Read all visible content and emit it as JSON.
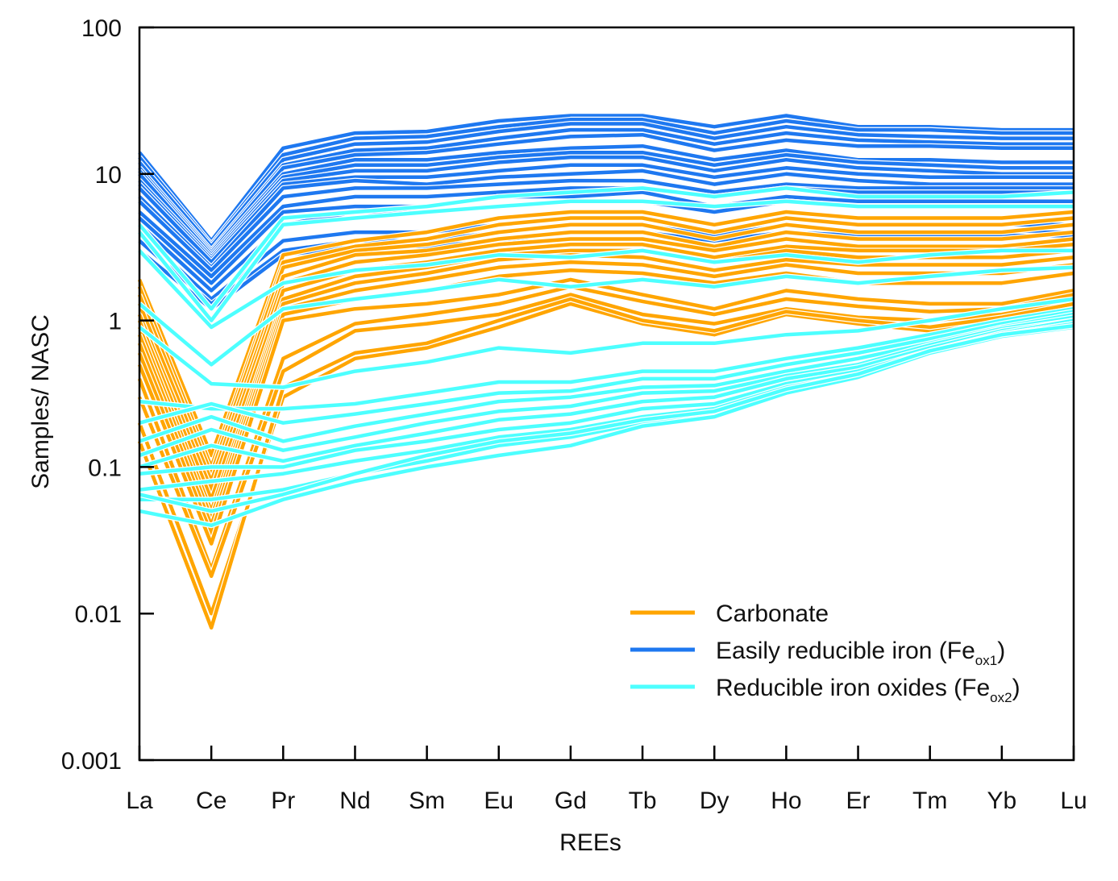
{
  "chart_data": {
    "type": "line",
    "xlabel": "REEs",
    "ylabel": "Samples/ NASC",
    "yscale": "log",
    "ylim": [
      0.001,
      100
    ],
    "yticks": [
      100,
      10,
      1,
      0.1,
      0.01,
      0.001
    ],
    "ytick_labels": [
      "100",
      "10",
      "1",
      "0.1",
      "0.01",
      "0.001"
    ],
    "categories": [
      "La",
      "Ce",
      "Pr",
      "Nd",
      "Sm",
      "Eu",
      "Gd",
      "Tb",
      "Dy",
      "Ho",
      "Er",
      "Tm",
      "Yb",
      "Lu"
    ],
    "grid": false,
    "legend_position": "bottom-right",
    "legend": [
      {
        "group": "carbonate",
        "label": "Carbonate",
        "sub": "",
        "suffix": "",
        "color": "#FFA500"
      },
      {
        "group": "feox1",
        "label": "Easily reducible iron (Fe",
        "sub": "ox1",
        "suffix": ")",
        "color": "#1E78F0"
      },
      {
        "group": "feox2",
        "label": "Reducible iron oxides (Fe",
        "sub": "ox2",
        "suffix": ")",
        "color": "#4DFFFF"
      }
    ],
    "series": [
      {
        "group": "feox1",
        "values": [
          14,
          3.5,
          15,
          19,
          19.5,
          23,
          25,
          25,
          21,
          25,
          21,
          21,
          20,
          20
        ]
      },
      {
        "group": "feox1",
        "values": [
          13,
          3.3,
          13.5,
          17.5,
          18,
          21,
          23.5,
          23.5,
          19,
          23,
          20,
          20,
          19,
          19
        ]
      },
      {
        "group": "feox1",
        "values": [
          12,
          3.2,
          12.5,
          16,
          16.5,
          19.5,
          22,
          22,
          17.5,
          21,
          18.5,
          18,
          17.5,
          17.5
        ]
      },
      {
        "group": "feox1",
        "values": [
          11,
          3.0,
          11.5,
          14.5,
          15,
          17.5,
          20,
          20,
          16,
          19,
          17,
          16.5,
          16,
          16
        ]
      },
      {
        "group": "feox1",
        "values": [
          10.5,
          2.9,
          11,
          13.5,
          14,
          16,
          18,
          18.5,
          14.5,
          17,
          15.5,
          15.5,
          15,
          15
        ]
      },
      {
        "group": "feox1",
        "values": [
          10,
          2.8,
          10,
          12.5,
          12.5,
          14,
          15,
          15.5,
          12.5,
          14.5,
          12.5,
          12.5,
          12,
          12
        ]
      },
      {
        "group": "feox1",
        "values": [
          9,
          2.7,
          9.5,
          11.5,
          11.5,
          13,
          14,
          14,
          11.5,
          13.5,
          12,
          11.5,
          11,
          11
        ]
      },
      {
        "group": "feox1",
        "values": [
          8.5,
          2.6,
          9,
          10.5,
          10.5,
          12,
          13,
          13,
          10.5,
          12.5,
          11,
          10.5,
          10,
          10
        ]
      },
      {
        "group": "feox1",
        "values": [
          8,
          2.5,
          8.5,
          9.5,
          9.5,
          10.5,
          11.5,
          11.5,
          9.5,
          11,
          10,
          9.5,
          9.5,
          9.5
        ]
      },
      {
        "group": "feox1",
        "values": [
          7,
          2.3,
          8,
          9,
          8.5,
          9.5,
          10,
          10.5,
          8.5,
          10,
          9,
          8.5,
          8.5,
          8.5
        ]
      },
      {
        "group": "feox1",
        "values": [
          6.5,
          2.2,
          7,
          8,
          8,
          8.5,
          9,
          9,
          7.5,
          8.5,
          8,
          8,
          8,
          8
        ]
      },
      {
        "group": "feox1",
        "values": [
          5.5,
          2.0,
          6,
          7,
          7,
          7.5,
          8,
          8,
          7,
          8,
          7.5,
          7.5,
          7.5,
          7.5
        ]
      },
      {
        "group": "feox1",
        "values": [
          5,
          1.8,
          5.5,
          6,
          6,
          7,
          7,
          7.5,
          6,
          7,
          6.5,
          6.5,
          6.5,
          6.5
        ]
      },
      {
        "group": "feox1",
        "values": [
          4.5,
          1.6,
          4.5,
          5.5,
          5.5,
          6,
          6.5,
          6.5,
          5.5,
          6.5,
          6,
          6,
          6,
          6
        ]
      },
      {
        "group": "feox1",
        "values": [
          4,
          1.4,
          3.5,
          4,
          4,
          4.5,
          5,
          5,
          4,
          5,
          4.5,
          4.5,
          4.5,
          4.5
        ]
      },
      {
        "group": "feox1",
        "values": [
          3.5,
          1.3,
          3,
          3.5,
          3.5,
          4,
          4.5,
          4.5,
          3.8,
          4.5,
          4,
          4,
          4,
          4
        ]
      },
      {
        "group": "feox1",
        "values": [
          3,
          1.2,
          2.8,
          3.2,
          3.2,
          3.5,
          4,
          4,
          3.5,
          4,
          3.8,
          3.8,
          3.8,
          3.8
        ]
      },
      {
        "group": "carbonate",
        "values": [
          1.9,
          0.12,
          2.8,
          3.5,
          4,
          5,
          5.5,
          5.5,
          4.5,
          5.5,
          5,
          5,
          5,
          5.5
        ]
      },
      {
        "group": "carbonate",
        "values": [
          1.7,
          0.1,
          2.5,
          3.2,
          3.6,
          4.5,
          5,
          5,
          4,
          5,
          4.5,
          4.5,
          4.5,
          5
        ]
      },
      {
        "group": "carbonate",
        "values": [
          1.5,
          0.09,
          2.3,
          3,
          3.3,
          4,
          4.5,
          4.5,
          3.6,
          4.5,
          4,
          4,
          4,
          4.5
        ]
      },
      {
        "group": "carbonate",
        "values": [
          1.3,
          0.08,
          2,
          2.8,
          3,
          3.6,
          4,
          4,
          3.2,
          4,
          3.6,
          3.6,
          3.6,
          4
        ]
      },
      {
        "group": "carbonate",
        "values": [
          1.1,
          0.07,
          1.8,
          2.5,
          2.8,
          3.3,
          3.6,
          3.6,
          3,
          3.6,
          3.2,
          3.2,
          3.2,
          3.6
        ]
      },
      {
        "group": "carbonate",
        "values": [
          1.0,
          0.06,
          1.6,
          2.2,
          2.5,
          3,
          3.3,
          3.3,
          2.7,
          3.2,
          3,
          3,
          3,
          3.3
        ]
      },
      {
        "group": "carbonate",
        "values": [
          0.9,
          0.05,
          1.4,
          2,
          2.3,
          2.8,
          3,
          3,
          2.5,
          3,
          2.7,
          2.7,
          2.7,
          3
        ]
      },
      {
        "group": "carbonate",
        "values": [
          0.8,
          0.045,
          1.3,
          1.8,
          2.1,
          2.6,
          2.8,
          2.7,
          2.2,
          2.6,
          2.4,
          2.4,
          2.4,
          2.7
        ]
      },
      {
        "group": "carbonate",
        "values": [
          0.7,
          0.04,
          1.2,
          1.6,
          1.9,
          2.3,
          2.5,
          2.4,
          2,
          2.4,
          2.1,
          2.1,
          2.1,
          2.4
        ]
      },
      {
        "group": "carbonate",
        "values": [
          0.6,
          0.035,
          1.1,
          1.4,
          1.6,
          2,
          2.2,
          2.1,
          1.8,
          2.1,
          1.8,
          1.8,
          1.8,
          2.1
        ]
      },
      {
        "group": "carbonate",
        "values": [
          0.5,
          0.03,
          1.0,
          1.2,
          1.3,
          1.5,
          1.9,
          1.5,
          1.2,
          1.6,
          1.4,
          1.3,
          1.3,
          1.6
        ]
      },
      {
        "group": "carbonate",
        "values": [
          0.4,
          0.02,
          0.55,
          0.95,
          1.1,
          1.3,
          1.7,
          1.35,
          1.1,
          1.4,
          1.25,
          1.15,
          1.2,
          1.5
        ]
      },
      {
        "group": "carbonate",
        "values": [
          0.3,
          0.018,
          0.45,
          0.85,
          0.95,
          1.1,
          1.5,
          1.1,
          0.95,
          1.2,
          1.05,
          1.0,
          1.1,
          1.35
        ]
      },
      {
        "group": "carbonate",
        "values": [
          0.2,
          0.01,
          0.3,
          0.55,
          0.65,
          0.9,
          1.3,
          0.95,
          0.8,
          1.1,
          0.95,
          0.85,
          1.0,
          1.3
        ]
      },
      {
        "group": "carbonate",
        "values": [
          0.15,
          0.008,
          0.35,
          0.6,
          0.7,
          1.0,
          1.4,
          1.0,
          0.85,
          1.15,
          1.0,
          0.9,
          1.05,
          1.3
        ]
      },
      {
        "group": "feox2",
        "values": [
          4.5,
          1.2,
          5,
          5.5,
          6,
          7,
          7.5,
          8,
          7,
          8,
          7,
          7,
          7,
          7.5
        ]
      },
      {
        "group": "feox2",
        "values": [
          4,
          1.0,
          4.5,
          5,
          5.5,
          6,
          6.5,
          6.5,
          6,
          6.5,
          6,
          6,
          6,
          6
        ]
      },
      {
        "group": "feox2",
        "values": [
          3,
          0.9,
          1.8,
          2.2,
          2.4,
          2.8,
          2.7,
          3,
          2.5,
          2.8,
          2.5,
          2.8,
          3,
          3
        ]
      },
      {
        "group": "feox2",
        "values": [
          1.3,
          0.5,
          1.2,
          1.4,
          1.6,
          1.9,
          1.7,
          1.9,
          1.7,
          2,
          1.8,
          2,
          2.2,
          2.3
        ]
      },
      {
        "group": "feox2",
        "values": [
          0.9,
          0.37,
          0.35,
          0.45,
          0.52,
          0.65,
          0.6,
          0.7,
          0.7,
          0.8,
          0.85,
          1.0,
          1.2,
          1.4
        ]
      },
      {
        "group": "feox2",
        "values": [
          0.28,
          0.25,
          0.25,
          0.27,
          0.32,
          0.38,
          0.38,
          0.45,
          0.45,
          0.55,
          0.65,
          0.8,
          1.0,
          1.2
        ]
      },
      {
        "group": "feox2",
        "values": [
          0.2,
          0.27,
          0.2,
          0.23,
          0.27,
          0.32,
          0.33,
          0.4,
          0.4,
          0.5,
          0.6,
          0.75,
          0.95,
          1.15
        ]
      },
      {
        "group": "feox2",
        "values": [
          0.15,
          0.22,
          0.15,
          0.19,
          0.23,
          0.28,
          0.3,
          0.35,
          0.36,
          0.45,
          0.55,
          0.7,
          0.9,
          1.1
        ]
      },
      {
        "group": "feox2",
        "values": [
          0.12,
          0.18,
          0.13,
          0.16,
          0.2,
          0.24,
          0.26,
          0.32,
          0.33,
          0.42,
          0.5,
          0.68,
          0.88,
          1.05
        ]
      },
      {
        "group": "feox2",
        "values": [
          0.1,
          0.14,
          0.11,
          0.14,
          0.17,
          0.21,
          0.23,
          0.28,
          0.3,
          0.4,
          0.48,
          0.65,
          0.85,
          1.0
        ]
      },
      {
        "group": "feox2",
        "values": [
          0.09,
          0.1,
          0.1,
          0.13,
          0.15,
          0.18,
          0.2,
          0.25,
          0.27,
          0.37,
          0.45,
          0.62,
          0.82,
          1.0
        ]
      },
      {
        "group": "feox2",
        "values": [
          0.07,
          0.08,
          0.09,
          0.11,
          0.13,
          0.16,
          0.18,
          0.22,
          0.25,
          0.35,
          0.43,
          0.6,
          0.8,
          0.95
        ]
      },
      {
        "group": "feox2",
        "values": [
          0.06,
          0.06,
          0.07,
          0.09,
          0.11,
          0.14,
          0.16,
          0.2,
          0.23,
          0.33,
          0.42,
          0.6,
          0.8,
          0.95
        ]
      },
      {
        "group": "feox2",
        "values": [
          0.05,
          0.04,
          0.06,
          0.08,
          0.1,
          0.12,
          0.14,
          0.19,
          0.22,
          0.32,
          0.41,
          0.6,
          0.78,
          0.9
        ]
      },
      {
        "group": "feox2",
        "values": [
          0.065,
          0.05,
          0.065,
          0.09,
          0.12,
          0.15,
          0.17,
          0.21,
          0.24,
          0.34,
          0.43,
          0.62,
          0.8,
          0.92
        ]
      }
    ]
  }
}
